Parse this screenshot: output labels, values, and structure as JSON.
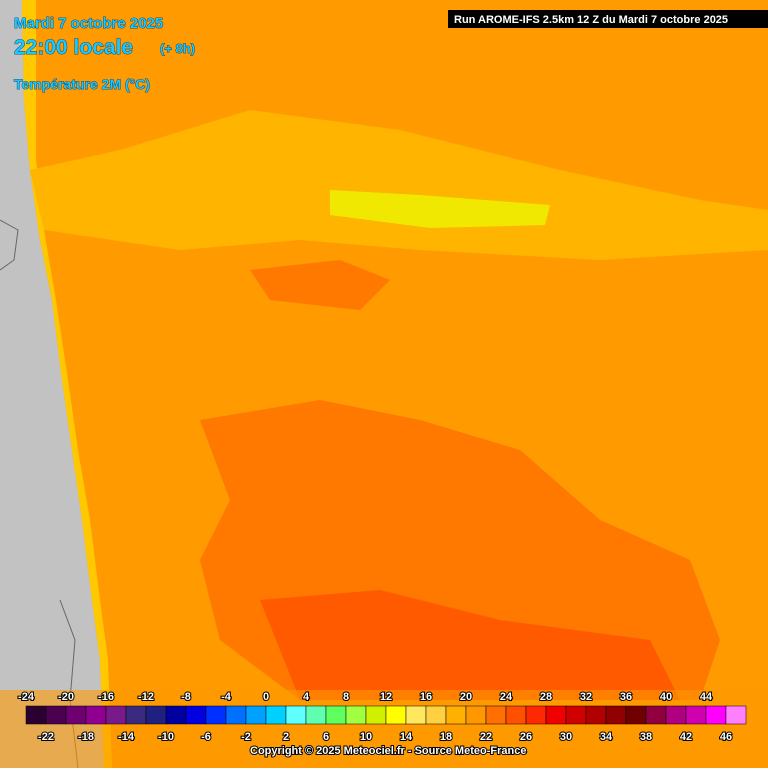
{
  "header": {
    "date": "Mardi 7 octobre 2025",
    "time": "22:00 locale",
    "lead": "(+ 8h)",
    "parameter": "Température 2M (°C)",
    "run": "Run AROME-IFS 2.5km 12 Z du Mardi 7 octobre 2025"
  },
  "legend": {
    "colors": [
      "#2a0030",
      "#4b0050",
      "#6e0070",
      "#8f0090",
      "#7a1a8a",
      "#3a2a80",
      "#202080",
      "#0000a0",
      "#0000e0",
      "#0030ff",
      "#0070ff",
      "#00a0ff",
      "#00d0ff",
      "#60ffff",
      "#60ffb0",
      "#60ff60",
      "#a0ff40",
      "#d0f000",
      "#ffff00",
      "#ffe860",
      "#ffd040",
      "#ffb000",
      "#ff9800",
      "#ff7000",
      "#ff5000",
      "#ff2800",
      "#f00000",
      "#d00000",
      "#b00000",
      "#900000",
      "#700000",
      "#900040",
      "#b00080",
      "#d000b0",
      "#ff00ff",
      "#ff80ff"
    ],
    "top_labels": [
      -24,
      -20,
      -16,
      -12,
      -8,
      -4,
      0,
      4,
      8,
      12,
      16,
      20,
      24,
      28,
      32,
      36,
      40,
      44
    ],
    "bottom_labels": [
      -22,
      -18,
      -14,
      -10,
      -6,
      -2,
      2,
      6,
      10,
      14,
      18,
      22,
      26,
      30,
      34,
      38,
      42,
      46
    ]
  },
  "footer": {
    "copyright": "Copyright © 2025 Meteociel.fr - Source Meteo-France"
  }
}
